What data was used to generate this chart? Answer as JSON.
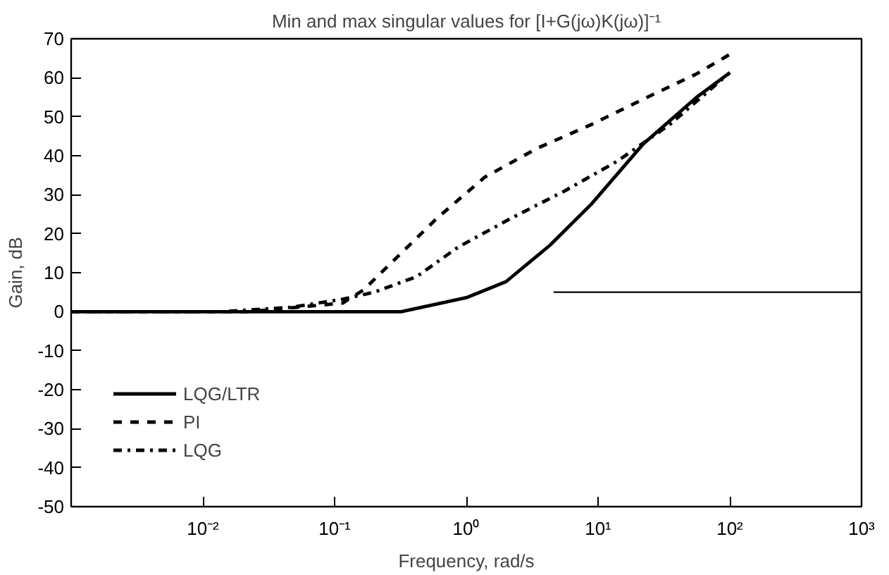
{
  "chart_data": {
    "type": "line",
    "title": "Min and max singular values for [I+G(jω)K(jω)]⁻¹",
    "xlabel": "Frequency, rad/s",
    "ylabel": "Gain, dB",
    "log": "x",
    "xlim": [
      0.001,
      1000
    ],
    "xticks": [
      {
        "value": 0.01,
        "label": "10⁻²"
      },
      {
        "value": 0.1,
        "label": "10⁻¹"
      },
      {
        "value": 1,
        "label": "10⁰"
      },
      {
        "value": 10,
        "label": "10¹"
      },
      {
        "value": 100,
        "label": "10²"
      },
      {
        "value": 1000,
        "label": "10³"
      }
    ],
    "ylim": [
      -50,
      70
    ],
    "yticks": [
      -50,
      -40,
      -30,
      -20,
      -10,
      0,
      10,
      20,
      30,
      40,
      50,
      60,
      70
    ],
    "grid": false,
    "legend": "bottom left",
    "series": [
      {
        "name": "LQG/LTR",
        "color": "#000000",
        "line_style": "solid",
        "x": [
          0.001,
          0.32,
          1,
          2,
          4.3,
          8.9,
          22,
          56,
          100
        ],
        "values": [
          0,
          0,
          3.6,
          7.7,
          17,
          27.6,
          43,
          55,
          61.3
        ]
      },
      {
        "name": "PI",
        "color": "#000000",
        "line_style": "dashed",
        "x": [
          0.001,
          0.022,
          0.115,
          0.166,
          0.32,
          0.6,
          1.38,
          3.5,
          8.9,
          22,
          56,
          100
        ],
        "values": [
          0,
          0,
          2.2,
          5.6,
          15,
          24,
          34.5,
          42,
          48,
          54.5,
          61,
          66
        ]
      },
      {
        "name": "LQG",
        "color": "#000000",
        "line_style": "dashdot",
        "x": [
          0.001,
          0.014,
          0.046,
          0.115,
          0.2,
          0.42,
          0.87,
          2.2,
          5.6,
          14,
          35,
          100
        ],
        "values": [
          0,
          0,
          1.1,
          3.2,
          5,
          9,
          16.6,
          24,
          31,
          38.6,
          48,
          61.3
        ]
      },
      {
        "color": "#000000",
        "line_style": "solid",
        "x": [
          4.6,
          1000
        ],
        "values": [
          5,
          5
        ]
      }
    ]
  }
}
